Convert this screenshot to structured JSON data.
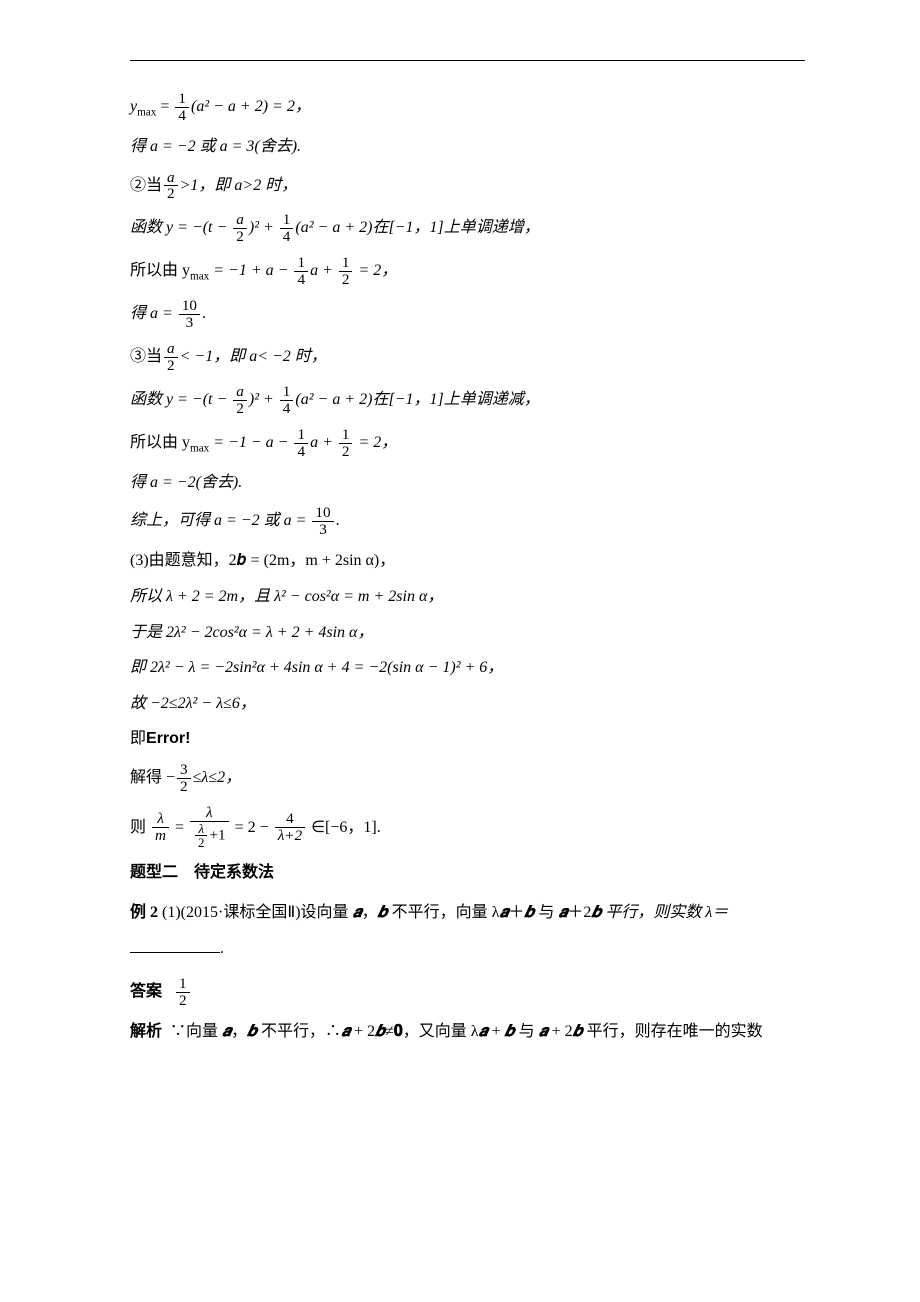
{
  "lines": {
    "l1_pre": "y",
    "l1_sub": "max",
    "l1_eq": " = ",
    "l1_frac_num": "1",
    "l1_frac_den": "4",
    "l1_post": "(a² − a + 2) = 2，",
    "l2": "得 a = −2 或 a = 3(舍去).",
    "l3_pre": "②当",
    "l3_frac_num": "a",
    "l3_frac_den": "2",
    "l3_post": ">1，即 a>2 时，",
    "l4_pre": "函数 y = −(t − ",
    "l4_f1_num": "a",
    "l4_f1_den": "2",
    "l4_mid": ")² + ",
    "l4_f2_num": "1",
    "l4_f2_den": "4",
    "l4_post": "(a² − a + 2)在[−1，1]上单调递增，",
    "l5_pre": "所以由 y",
    "l5_sub": "max",
    "l5_mid": " = −1 + a − ",
    "l5_f1_num": "1",
    "l5_f1_den": "4",
    "l5_mid2": "a + ",
    "l5_f2_num": "1",
    "l5_f2_den": "2",
    "l5_post": " = 2，",
    "l6_pre": "得 a = ",
    "l6_frac_num": "10",
    "l6_frac_den": "3",
    "l6_post": ".",
    "l7_pre": "③当",
    "l7_frac_num": "a",
    "l7_frac_den": "2",
    "l7_post": "< −1，即 a< −2 时，",
    "l8_pre": "函数 y = −(t − ",
    "l8_f1_num": "a",
    "l8_f1_den": "2",
    "l8_mid": ")² + ",
    "l8_f2_num": "1",
    "l8_f2_den": "4",
    "l8_post": "(a² − a + 2)在[−1，1]上单调递减，",
    "l9_pre": "所以由 y",
    "l9_sub": "max",
    "l9_mid": " = −1 − a − ",
    "l9_f1_num": "1",
    "l9_f1_den": "4",
    "l9_mid2": "a + ",
    "l9_f2_num": "1",
    "l9_f2_den": "2",
    "l9_post": " = 2，",
    "l10": "得 a = −2(舍去).",
    "l11_pre": "综上，可得 a = −2 或 a = ",
    "l11_frac_num": "10",
    "l11_frac_den": "3",
    "l11_post": ".",
    "l12": "(3)由题意知，2𝒃 = (2m，m + 2sin α)，",
    "l13": "所以 λ + 2 = 2m，且 λ² − cos²α = m + 2sin α，",
    "l14": "于是 2λ² − 2cos²α = λ + 2 + 4sin α，",
    "l15": "即 2λ² − λ = −2sin²α + 4sin α + 4 = −2(sin α − 1)² + 6，",
    "l16": "故 −2≤2λ² − λ≤6，",
    "l17_pre": "即",
    "l17_error": "Error!",
    "l18_pre": "解得 −",
    "l18_frac_num": "3",
    "l18_frac_den": "2",
    "l18_post": "≤λ≤2，",
    "l19_pre": "则",
    "l19_f1_num": "λ",
    "l19_f1_den": "m",
    "l19_mid1": " = ",
    "l19_f2_num": "λ",
    "l19_f2_den_inner_num": "λ",
    "l19_f2_den_inner_den": "2",
    "l19_f2_den_post": "+1",
    "l19_mid2": " = 2 − ",
    "l19_f3_num": "4",
    "l19_f3_den": "λ+2",
    "l19_post": "∈[−6，1].",
    "section2": "题型二　待定系数法",
    "ex2_label": "例 2",
    "ex2_text_a": "(1)(2015·课标全国Ⅱ)设向量 ",
    "ex2_text_b": "𝒂",
    "ex2_text_c": "，",
    "ex2_text_d": "𝒃",
    "ex2_text_e": " 不平行，向量 λ",
    "ex2_text_f": "𝒂",
    "ex2_text_g": "＋",
    "ex2_text_h": "𝒃",
    "ex2_text_i": " 与 ",
    "ex2_text_j": "𝒂",
    "ex2_text_k": "＋2",
    "ex2_text_l": "𝒃",
    "ex2_text_m": " 平行，则实数 λ＝",
    "blank_end": ".",
    "ans_label": "答案",
    "ans_frac_num": "1",
    "ans_frac_den": "2",
    "sol_label": "解析",
    "sol_text_a": "∵向量 ",
    "sol_text_b": "𝒂",
    "sol_text_c": "，",
    "sol_text_d": "𝒃",
    "sol_text_e": " 不平行，∴",
    "sol_text_f": "𝒂",
    "sol_text_g": " + 2",
    "sol_text_h": "𝒃",
    "sol_text_i": "≠",
    "sol_text_j": "𝟎",
    "sol_text_k": "，又向量 λ",
    "sol_text_l": "𝒂",
    "sol_text_m": " + ",
    "sol_text_n": "𝒃",
    "sol_text_o": " 与 ",
    "sol_text_p": "𝒂",
    "sol_text_q": " + 2",
    "sol_text_r": "𝒃",
    "sol_text_s": " 平行，则存在唯一的实数"
  },
  "colors": {
    "text": "#000000",
    "background": "#ffffff",
    "rule": "#000000"
  },
  "fonts": {
    "body_family": "SimSun, 宋体, serif",
    "math_family": "Times New Roman, serif",
    "base_size_pt": 12
  }
}
